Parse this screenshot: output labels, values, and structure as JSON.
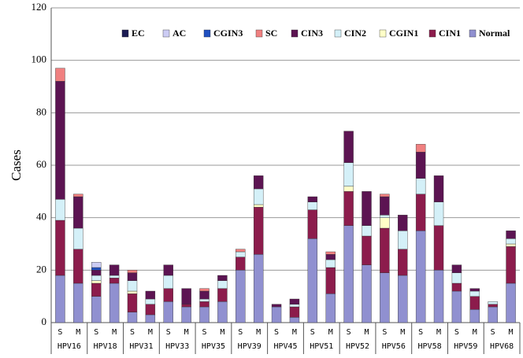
{
  "chart_data": {
    "type": "stacked-bar",
    "y_label": "Cases",
    "categories": [
      "S",
      "M",
      "S",
      "M",
      "S",
      "M",
      "S",
      "M",
      "S",
      "M",
      "S",
      "M",
      "S",
      "M",
      "S",
      "M",
      "S",
      "M",
      "S",
      "M",
      "S",
      "M",
      "S",
      "M",
      "S",
      "M"
    ],
    "groups": [
      "HPV16",
      "HPV18",
      "HPV31",
      "HPV33",
      "HPV35",
      "HPV39",
      "HPV45",
      "HPV51",
      "HPV52",
      "HPV56",
      "HPV58",
      "HPV59",
      "HPV68"
    ],
    "ylim": [
      0,
      120
    ],
    "yticks": [
      0,
      20,
      40,
      60,
      80,
      100,
      120
    ],
    "grid": true,
    "series": [
      {
        "name": "Normal",
        "color": "#9090d0",
        "values": [
          18,
          15,
          10,
          15,
          4,
          3,
          8,
          6,
          6,
          8,
          20,
          26,
          6,
          2,
          32,
          11,
          37,
          22,
          19,
          18,
          35,
          20,
          12,
          5,
          6,
          15
        ]
      },
      {
        "name": "CIN1",
        "color": "#8c1c4c",
        "values": [
          21,
          13,
          5,
          2,
          7,
          4,
          5,
          1,
          2,
          5,
          5,
          18,
          0,
          4,
          11,
          10,
          13,
          11,
          17,
          10,
          14,
          17,
          3,
          5,
          1,
          14
        ]
      },
      {
        "name": "CGIN1",
        "color": "#ffffc8",
        "values": [
          0,
          0,
          1,
          0,
          1,
          0,
          0,
          0,
          0,
          0,
          0,
          1,
          0,
          0,
          0,
          0,
          2,
          0,
          4,
          0,
          0,
          0,
          0,
          0,
          0,
          1
        ]
      },
      {
        "name": "CIN2",
        "color": "#d4f0f8",
        "values": [
          8,
          8,
          2,
          1,
          4,
          2,
          5,
          0,
          1,
          3,
          2,
          6,
          0,
          1,
          3,
          3,
          9,
          4,
          1,
          7,
          6,
          9,
          4,
          2,
          1,
          2
        ]
      },
      {
        "name": "CIN3",
        "color": "#5c1452",
        "values": [
          45,
          12,
          2,
          4,
          3,
          3,
          4,
          6,
          3,
          2,
          0,
          5,
          1,
          2,
          2,
          2,
          12,
          13,
          7,
          6,
          10,
          10,
          3,
          1,
          0,
          3
        ]
      },
      {
        "name": "SC",
        "color": "#f08080",
        "values": [
          5,
          1,
          0,
          0,
          1,
          0,
          0,
          0,
          1,
          0,
          1,
          0,
          0,
          0,
          0,
          1,
          0,
          0,
          1,
          0,
          3,
          0,
          0,
          0,
          0,
          0
        ]
      },
      {
        "name": "CGIN3",
        "color": "#2050c0",
        "values": [
          0,
          0,
          1,
          0,
          0,
          0,
          0,
          0,
          0,
          0,
          0,
          0,
          0,
          0,
          0,
          0,
          0,
          0,
          0,
          0,
          0,
          0,
          0,
          0,
          0,
          0
        ]
      },
      {
        "name": "AC",
        "color": "#ccccf4",
        "values": [
          0,
          0,
          2,
          0,
          0,
          0,
          0,
          0,
          0,
          0,
          0,
          0,
          0,
          0,
          0,
          0,
          0,
          0,
          0,
          0,
          0,
          0,
          0,
          0,
          0,
          0
        ]
      },
      {
        "name": "EC",
        "color": "#1c1c54",
        "values": [
          0,
          0,
          0,
          0,
          0,
          0,
          0,
          0,
          0,
          0,
          0,
          0,
          0,
          0,
          0,
          0,
          0,
          0,
          0,
          0,
          0,
          0,
          0,
          0,
          0,
          0
        ]
      }
    ]
  }
}
